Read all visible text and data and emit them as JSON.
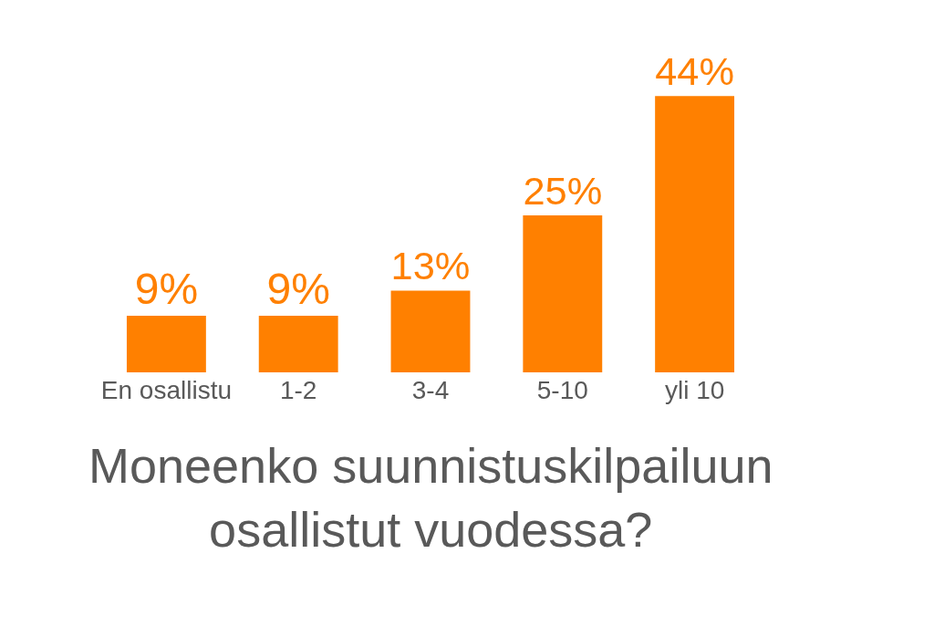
{
  "chart_data": {
    "type": "bar",
    "title": "Moneenko suunnistuskilpailuun\nosallistut vuodessa?",
    "categories": [
      "En osallistu",
      "1-2",
      "3-4",
      "5-10",
      "yli 10"
    ],
    "values": [
      9,
      9,
      13,
      25,
      44
    ],
    "value_labels": [
      "9%",
      "9%",
      "13%",
      "25%",
      "44%"
    ],
    "color": "#ff8000",
    "legend": false
  }
}
